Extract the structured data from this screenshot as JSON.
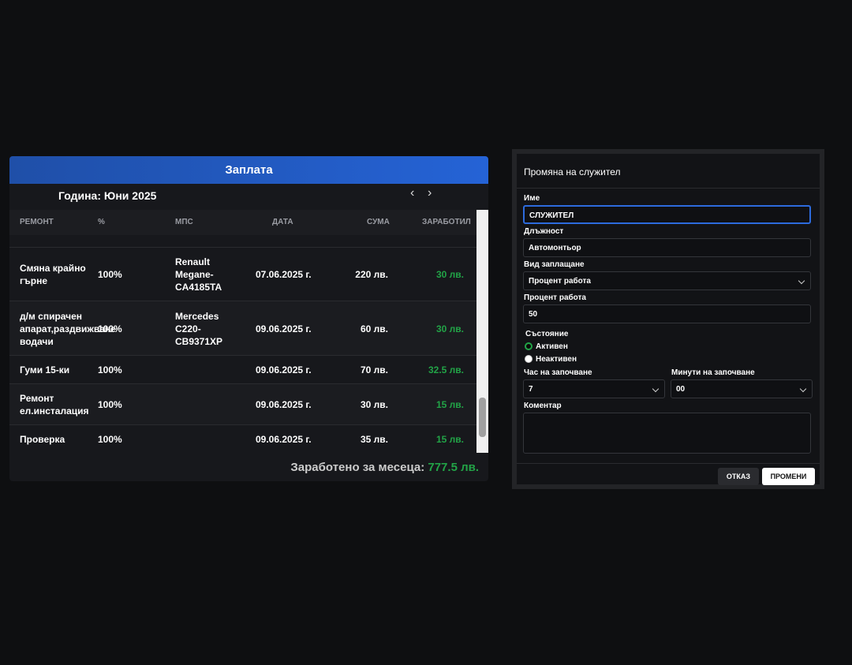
{
  "salary": {
    "title": "Заплата",
    "period": "Година: Юни 2025",
    "columns": [
      "РЕМОНТ",
      "%",
      "МПС",
      "ДАТА",
      "СУМА",
      "ЗАРАБОТИЛ"
    ],
    "rows": [
      {
        "repair": "Смяна крайно гърне",
        "percent": "100%",
        "vehicle": "Renault Megane-CA4185TA",
        "date": "07.06.2025 г.",
        "sum": "220 лв.",
        "earned": "30 лв."
      },
      {
        "repair": "д/м спирачен апарат,раздвижване водачи",
        "percent": "100%",
        "vehicle": "Mercedes C220-CB9371XP",
        "date": "09.06.2025 г.",
        "sum": "60 лв.",
        "earned": "30 лв."
      },
      {
        "repair": "Гуми 15-ки",
        "percent": "100%",
        "date": "09.06.2025 г.",
        "sum": "70 лв.",
        "earned": "32.5 лв."
      },
      {
        "repair": "Ремонт ел.инсталация",
        "percent": "100%",
        "date": "09.06.2025 г.",
        "sum": "30 лв.",
        "earned": "15 лв."
      },
      {
        "repair": "Проверка",
        "percent": "100%",
        "date": "09.06.2025 г.",
        "sum": "35 лв.",
        "earned": "15 лв."
      }
    ],
    "total_label": "Заработено за месеца:",
    "total_value": "777.5 лв."
  },
  "dialog": {
    "title": "Промяна на служител",
    "name_label": "Име",
    "name_value": "СЛУЖИТЕЛ",
    "position_label": "Длъжност",
    "position_value": "Автомонтьор",
    "pay_type_label": "Вид заплащане",
    "pay_type_value": "Процент работа",
    "percent_label": "Процент работа",
    "percent_value": "50",
    "status_label": "Състояние",
    "status_active": "Активен",
    "status_inactive": "Неактивен",
    "start_hour_label": "Час на започване",
    "start_hour_value": "7",
    "start_min_label": "Минути на започване",
    "start_min_value": "00",
    "comment_label": "Коментар",
    "cancel": "ОТКАЗ",
    "save": "ПРОМЕНИ"
  }
}
